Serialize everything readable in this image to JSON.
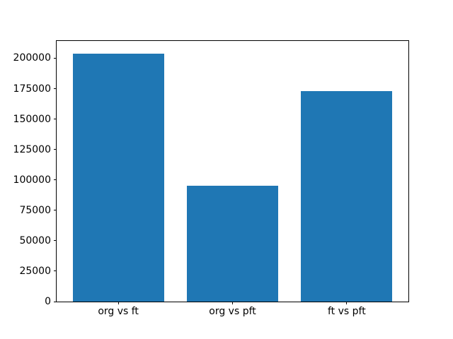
{
  "chart_data": {
    "type": "bar",
    "title": "",
    "xlabel": "",
    "ylabel": "",
    "categories": [
      "org vs ft",
      "org vs pft",
      "ft vs pft"
    ],
    "values": [
      204000,
      95000,
      173000
    ],
    "yticks": [
      0,
      25000,
      50000,
      75000,
      100000,
      125000,
      150000,
      175000,
      200000
    ],
    "ylim": [
      0,
      214200
    ],
    "xlim": [
      -0.54,
      2.54
    ],
    "bar_width": 0.8,
    "bar_color": "#1f77b4",
    "grid": false,
    "legend": null
  }
}
